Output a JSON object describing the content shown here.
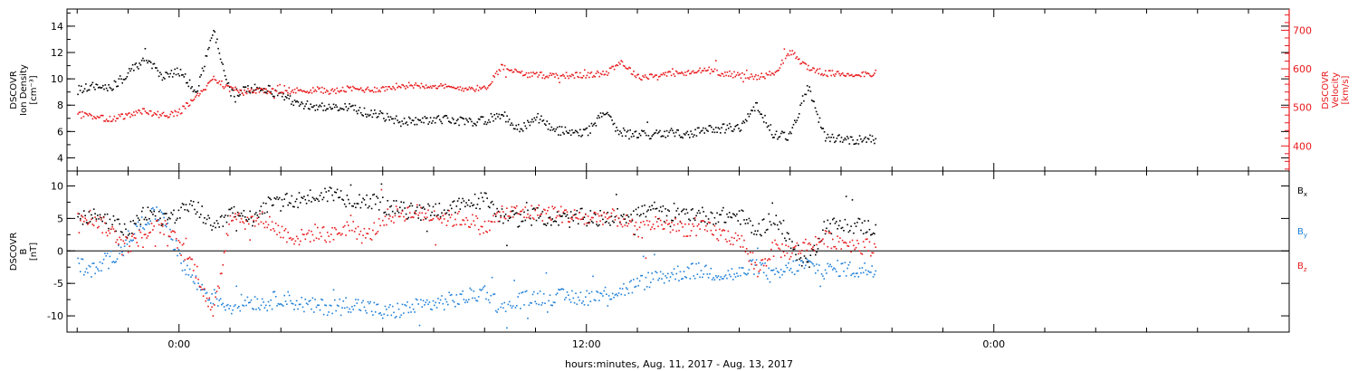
{
  "xaxis": {
    "title": "hours:minutes, Aug. 11, 2017 - Aug. 13, 2017",
    "tick_labels": [
      {
        "label": "0:00",
        "hour": 0
      },
      {
        "label": "12:00",
        "hour": 12
      },
      {
        "label": "0:00",
        "hour": 24
      }
    ],
    "range_hours": [
      -3.3,
      32.7
    ],
    "data_end_hour": 20.5
  },
  "chart_data": [
    {
      "type": "scatter",
      "panel": "plasma",
      "left_axis": {
        "label_lines": [
          "DSCOVR",
          "Ion Density",
          "[cm⁻³]"
        ],
        "ylim": [
          3.0,
          15.3
        ],
        "ticks": [
          4,
          6,
          8,
          10,
          12,
          14
        ],
        "color": "#000000"
      },
      "right_axis": {
        "label_lines": [
          "DSCOVR",
          "Velocity",
          "[km/s]"
        ],
        "ylim": [
          335,
          755
        ],
        "ticks": [
          400,
          500,
          600,
          700
        ],
        "color": "#e8191c"
      },
      "series": [
        {
          "name": "Ion Density",
          "axis": "left",
          "color": "#000000",
          "x_hours": [
            -3.0,
            -2.5,
            -2.0,
            -1.5,
            -1.0,
            -0.5,
            0.0,
            0.5,
            1.0,
            1.5,
            2.0,
            2.5,
            3.0,
            3.5,
            4.0,
            4.5,
            5.0,
            5.5,
            6.0,
            6.5,
            7.0,
            7.5,
            8.0,
            8.5,
            9.0,
            9.5,
            10.0,
            10.5,
            11.0,
            11.5,
            12.0,
            12.5,
            13.0,
            13.5,
            14.0,
            14.5,
            15.0,
            15.5,
            16.0,
            16.5,
            17.0,
            17.5,
            18.0,
            18.5,
            19.0,
            19.5,
            20.0,
            20.5
          ],
          "y": [
            9.2,
            9.5,
            9.4,
            10.5,
            11.7,
            10.2,
            10.6,
            9.0,
            13.8,
            8.9,
            9.2,
            9.4,
            8.7,
            8.2,
            8.0,
            7.8,
            7.9,
            7.5,
            7.2,
            6.8,
            6.9,
            7.0,
            6.9,
            6.8,
            6.9,
            7.4,
            6.2,
            7.2,
            6.2,
            6.0,
            6.0,
            7.5,
            5.8,
            5.9,
            5.8,
            6.0,
            5.8,
            6.2,
            6.3,
            6.4,
            8.0,
            5.8,
            5.7,
            9.6,
            5.6,
            5.5,
            5.4,
            5.5
          ]
        },
        {
          "name": "Velocity",
          "axis": "right",
          "color": "#e8191c",
          "x_hours": [
            -3.0,
            -2.5,
            -2.0,
            -1.5,
            -1.0,
            -0.5,
            0.0,
            0.5,
            1.0,
            1.5,
            2.0,
            2.5,
            3.0,
            3.5,
            4.0,
            4.5,
            5.0,
            5.5,
            6.0,
            6.5,
            7.0,
            7.5,
            8.0,
            8.5,
            9.0,
            9.5,
            10.0,
            10.5,
            11.0,
            11.5,
            12.0,
            12.5,
            13.0,
            13.5,
            14.0,
            14.5,
            15.0,
            15.5,
            16.0,
            16.5,
            17.0,
            17.5,
            18.0,
            18.5,
            19.0,
            19.5,
            20.0,
            20.5
          ],
          "y": [
            485,
            475,
            472,
            482,
            492,
            480,
            490,
            530,
            575,
            548,
            545,
            545,
            542,
            545,
            548,
            543,
            550,
            548,
            550,
            558,
            560,
            558,
            552,
            552,
            550,
            610,
            590,
            585,
            585,
            585,
            585,
            590,
            620,
            580,
            585,
            590,
            590,
            600,
            590,
            585,
            580,
            590,
            645,
            605,
            590,
            588,
            588,
            590
          ]
        }
      ]
    },
    {
      "type": "scatter",
      "panel": "magnetic_field",
      "left_axis": {
        "label_lines": [
          "DSCOVR",
          "B",
          "[nT]"
        ],
        "ylim": [
          -12.5,
          12.3
        ],
        "ticks": [
          -10,
          -5,
          0,
          5,
          10
        ],
        "color": "#000000"
      },
      "zero_line": true,
      "series": [
        {
          "name": "Bx",
          "label_main": "B",
          "label_sub": "x",
          "color": "#000000",
          "x_hours": [
            -3.0,
            -2.5,
            -2.0,
            -1.5,
            -1.0,
            -0.5,
            0.0,
            0.5,
            1.0,
            1.5,
            2.0,
            2.5,
            3.0,
            3.5,
            4.0,
            4.5,
            5.0,
            5.5,
            6.0,
            6.5,
            7.0,
            7.5,
            8.0,
            8.5,
            9.0,
            9.5,
            10.0,
            10.5,
            11.0,
            11.5,
            12.0,
            12.5,
            13.0,
            13.5,
            14.0,
            14.5,
            15.0,
            15.5,
            16.0,
            16.5,
            17.0,
            17.5,
            18.0,
            18.5,
            19.0,
            19.5,
            20.0,
            20.5
          ],
          "y": [
            5.0,
            5.5,
            4.5,
            3.0,
            6.0,
            5.0,
            6.0,
            7.0,
            3.0,
            6.0,
            5.0,
            7.0,
            7.5,
            8.0,
            8.5,
            9.0,
            8.0,
            8.0,
            7.0,
            6.5,
            6.0,
            6.5,
            6.5,
            7.5,
            8.0,
            5.5,
            5.0,
            5.5,
            5.0,
            5.0,
            5.5,
            5.0,
            5.5,
            6.0,
            6.5,
            5.0,
            6.0,
            5.5,
            5.5,
            5.5,
            3.0,
            5.5,
            1.0,
            -2.0,
            4.0,
            4.0,
            4.0,
            3.5
          ]
        },
        {
          "name": "By",
          "label_main": "B",
          "label_sub": "y",
          "color": "#1e7fd8",
          "x_hours": [
            -3.0,
            -2.5,
            -2.0,
            -1.5,
            -1.0,
            -0.5,
            0.0,
            0.5,
            1.0,
            1.5,
            2.0,
            2.5,
            3.0,
            3.5,
            4.0,
            4.5,
            5.0,
            5.5,
            6.0,
            6.5,
            7.0,
            7.5,
            8.0,
            8.5,
            9.0,
            9.5,
            10.0,
            10.5,
            11.0,
            11.5,
            12.0,
            12.5,
            13.0,
            13.5,
            14.0,
            14.5,
            15.0,
            15.5,
            16.0,
            16.5,
            17.0,
            17.5,
            18.0,
            18.5,
            19.0,
            19.5,
            20.0,
            20.5
          ],
          "y": [
            -2.0,
            -3.0,
            -1.0,
            2.0,
            5.0,
            6.0,
            -1.0,
            -5.0,
            -7.0,
            -8.5,
            -7.5,
            -8.0,
            -7.0,
            -8.0,
            -8.5,
            -8.5,
            -8.0,
            -8.5,
            -9.5,
            -9.0,
            -8.5,
            -8.0,
            -7.5,
            -7.0,
            -6.0,
            -9.0,
            -7.5,
            -7.0,
            -7.0,
            -7.0,
            -7.0,
            -6.5,
            -6.0,
            -5.0,
            -4.0,
            -3.5,
            -3.0,
            -3.0,
            -3.5,
            -3.5,
            -2.0,
            -4.0,
            -2.5,
            -2.0,
            -3.0,
            -2.5,
            -3.0,
            -2.5
          ]
        },
        {
          "name": "Bz",
          "label_main": "B",
          "label_sub": "z",
          "color": "#e8191c",
          "x_hours": [
            -3.0,
            -2.5,
            -2.0,
            -1.5,
            -1.0,
            -0.5,
            0.0,
            0.5,
            1.0,
            1.5,
            2.0,
            2.5,
            3.0,
            3.5,
            4.0,
            4.5,
            5.0,
            5.5,
            6.0,
            6.5,
            7.0,
            7.5,
            8.0,
            8.5,
            9.0,
            9.5,
            10.0,
            10.5,
            11.0,
            11.5,
            12.0,
            12.5,
            13.0,
            13.5,
            14.0,
            14.5,
            15.0,
            15.5,
            16.0,
            16.5,
            17.0,
            17.5,
            18.0,
            18.5,
            19.0,
            19.5,
            20.0,
            20.5
          ],
          "y": [
            6.0,
            5.0,
            3.0,
            1.0,
            3.0,
            4.0,
            1.0,
            -3.0,
            -10.0,
            6.0,
            4.5,
            5.0,
            3.0,
            2.0,
            3.0,
            2.5,
            4.0,
            2.0,
            5.0,
            6.0,
            6.0,
            5.5,
            5.0,
            5.0,
            3.5,
            6.0,
            6.0,
            6.0,
            6.0,
            5.5,
            5.0,
            5.5,
            5.0,
            3.0,
            4.5,
            4.0,
            3.5,
            3.5,
            2.5,
            2.0,
            -3.0,
            0.5,
            0.0,
            1.0,
            2.0,
            1.5,
            1.0,
            0.5
          ]
        }
      ]
    }
  ]
}
